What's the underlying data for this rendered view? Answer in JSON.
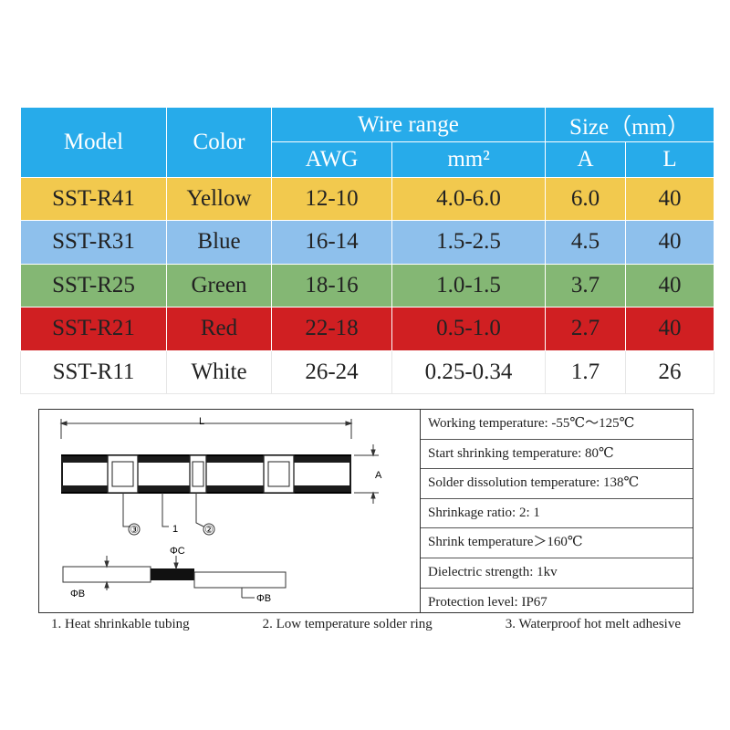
{
  "table": {
    "headers": {
      "model": "Model",
      "color": "Color",
      "wire_range": "Wire range",
      "size": "Size（mm）",
      "awg": "AWG",
      "mm2": "mm²",
      "a": "A",
      "l": "L"
    },
    "rows": [
      {
        "model": "SST-R41",
        "color": "Yellow",
        "awg": "12-10",
        "mm2": "4.0-6.0",
        "a": "6.0",
        "l": "40",
        "bg": "#f2c94e"
      },
      {
        "model": "SST-R31",
        "color": "Blue",
        "awg": "16-14",
        "mm2": "1.5-2.5",
        "a": "4.5",
        "l": "40",
        "bg": "#8ec0ec"
      },
      {
        "model": "SST-R25",
        "color": "Green",
        "awg": "18-16",
        "mm2": "1.0-1.5",
        "a": "3.7",
        "l": "40",
        "bg": "#84b774"
      },
      {
        "model": "SST-R21",
        "color": "Red",
        "awg": "22-18",
        "mm2": "0.5-1.0",
        "a": "2.7",
        "l": "40",
        "bg": "#d01f22"
      },
      {
        "model": "SST-R11",
        "color": "White",
        "awg": "26-24",
        "mm2": "0.25-0.34",
        "a": "1.7",
        "l": "26",
        "bg": "#ffffff"
      }
    ],
    "header_color": "#27abea"
  },
  "drawing": {
    "label_l": "L",
    "label_a": "A",
    "label_1": "1",
    "label_2": "②",
    "label_3": "③",
    "label_phic": "ΦC",
    "label_phib_left": "ΦB",
    "label_phib_right": "ΦB"
  },
  "properties": [
    "Working temperature: -55℃～125℃",
    "Start shrinking temperature: 80℃",
    "Solder dissolution temperature: 138℃",
    "Shrinkage ratio: 2: 1",
    "Shrink temperature＞160℃",
    "Dielectric strength: 1kv",
    "Protection level: IP67"
  ],
  "legend": [
    "1. Heat shrinkable tubing",
    "2. Low temperature solder ring",
    "3. Waterproof hot melt adhesive"
  ]
}
